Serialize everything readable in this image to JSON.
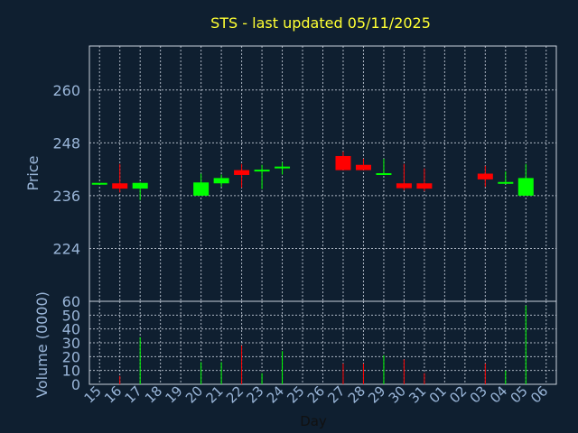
{
  "chart_data": {
    "type": "candlestick",
    "title": "STS - last updated 05/11/2025",
    "price_panel": {
      "ylabel": "Price",
      "ylim": [
        212,
        270
      ],
      "yticks": [
        224,
        236,
        248,
        260
      ]
    },
    "volume_panel": {
      "ylabel": "Volume (0000)",
      "ylim": [
        0,
        60
      ],
      "yticks": [
        0,
        10,
        20,
        30,
        40,
        50,
        60
      ]
    },
    "xlabel": "Day",
    "x_ticks": [
      "15",
      "16",
      "17",
      "18",
      "19",
      "20",
      "21",
      "22",
      "23",
      "24",
      "25",
      "26",
      "27",
      "28",
      "29",
      "30",
      "31",
      "01",
      "02",
      "03",
      "04",
      "05",
      "06"
    ],
    "colors": {
      "up": "#00ff00",
      "down": "#ff0000",
      "background": "#0f1f30",
      "title": "#ffff33",
      "axis_text": "#9ab6d9"
    },
    "candles": [
      {
        "x": "15",
        "open": 238.7,
        "close": 238.7,
        "high": 238.7,
        "low": 238.7,
        "volume": 0
      },
      {
        "x": "16",
        "open": 238.8,
        "close": 237.6,
        "high": 243.2,
        "low": 236.7,
        "volume": 6
      },
      {
        "x": "17",
        "open": 237.6,
        "close": 238.9,
        "high": 239.0,
        "low": 235.0,
        "volume": 34
      },
      {
        "x": "20",
        "open": 236.0,
        "close": 239.0,
        "high": 241.0,
        "low": 236.0,
        "volume": 16
      },
      {
        "x": "21",
        "open": 238.8,
        "close": 240.0,
        "high": 240.8,
        "low": 238.0,
        "volume": 16
      },
      {
        "x": "22",
        "open": 241.8,
        "close": 240.7,
        "high": 243.2,
        "low": 237.8,
        "volume": 28
      },
      {
        "x": "23",
        "open": 241.5,
        "close": 241.7,
        "high": 243.0,
        "low": 237.5,
        "volume": 8
      },
      {
        "x": "24",
        "open": 242.0,
        "close": 242.4,
        "high": 243.6,
        "low": 240.8,
        "volume": 24
      },
      {
        "x": "27",
        "open": 245.0,
        "close": 241.8,
        "high": 246.0,
        "low": 241.8,
        "volume": 15
      },
      {
        "x": "28",
        "open": 243.0,
        "close": 241.8,
        "high": 244.4,
        "low": 241.8,
        "volume": 15
      },
      {
        "x": "29",
        "open": 240.7,
        "close": 240.9,
        "high": 244.4,
        "low": 240.7,
        "volume": 21
      },
      {
        "x": "30",
        "open": 238.8,
        "close": 237.7,
        "high": 243.2,
        "low": 237.2,
        "volume": 18
      },
      {
        "x": "31",
        "open": 238.8,
        "close": 237.6,
        "high": 242.2,
        "low": 237.0,
        "volume": 8
      },
      {
        "x": "03",
        "open": 241.0,
        "close": 239.7,
        "high": 242.8,
        "low": 238.0,
        "volume": 15
      },
      {
        "x": "04",
        "open": 238.6,
        "close": 238.9,
        "high": 241.5,
        "low": 238.6,
        "volume": 10
      },
      {
        "x": "05",
        "open": 236.0,
        "close": 240.0,
        "high": 243.2,
        "low": 236.0,
        "volume": 57
      }
    ]
  }
}
